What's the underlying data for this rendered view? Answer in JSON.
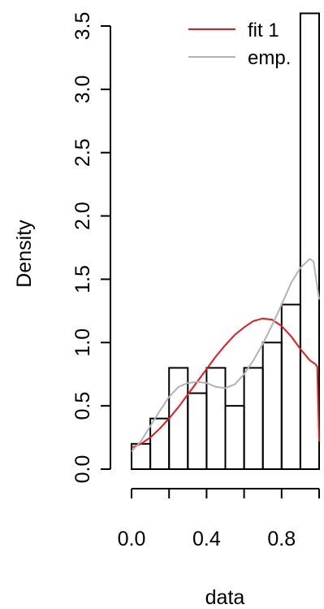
{
  "chart_data": {
    "type": "bar",
    "title": "",
    "xlabel": "data",
    "ylabel": "Density",
    "xlim": [
      0.0,
      1.0
    ],
    "ylim": [
      0.0,
      3.6
    ],
    "x_ticks": [
      "0.0",
      "0.4",
      "0.8"
    ],
    "x_tick_values": [
      0.0,
      0.2,
      0.4,
      0.6,
      0.8,
      1.0
    ],
    "x_tick_labeled": [
      0.0,
      0.4,
      0.8
    ],
    "y_ticks": [
      "0.0",
      "0.5",
      "1.0",
      "1.5",
      "2.0",
      "2.5",
      "3.0",
      "3.5"
    ],
    "y_tick_values": [
      0.0,
      0.5,
      1.0,
      1.5,
      2.0,
      2.5,
      3.0,
      3.5
    ],
    "histogram": {
      "bin_edges": [
        0.0,
        0.1,
        0.2,
        0.3,
        0.4,
        0.5,
        0.6,
        0.7,
        0.8,
        0.9,
        1.0
      ],
      "density": [
        0.2,
        0.4,
        0.8,
        0.6,
        0.8,
        0.5,
        0.8,
        1.0,
        1.3,
        3.6
      ]
    },
    "series": [
      {
        "name": "fit 1",
        "color": "#e31a1c",
        "x": [
          0.0,
          0.05,
          0.1,
          0.15,
          0.2,
          0.25,
          0.3,
          0.35,
          0.4,
          0.45,
          0.5,
          0.55,
          0.6,
          0.65,
          0.7,
          0.75,
          0.8,
          0.85,
          0.9,
          0.95,
          0.98,
          0.99,
          1.0
        ],
        "y": [
          0.17,
          0.2,
          0.25,
          0.32,
          0.4,
          0.49,
          0.59,
          0.69,
          0.79,
          0.89,
          0.98,
          1.06,
          1.12,
          1.17,
          1.19,
          1.18,
          1.13,
          1.05,
          0.95,
          0.86,
          0.83,
          0.81,
          0.22
        ]
      },
      {
        "name": "emp.",
        "color": "#b3b3b3",
        "x": [
          0.0,
          0.05,
          0.1,
          0.15,
          0.2,
          0.25,
          0.3,
          0.35,
          0.4,
          0.45,
          0.5,
          0.55,
          0.6,
          0.65,
          0.7,
          0.75,
          0.8,
          0.85,
          0.9,
          0.95,
          0.97,
          1.0
        ],
        "y": [
          0.14,
          0.22,
          0.34,
          0.46,
          0.57,
          0.65,
          0.68,
          0.69,
          0.68,
          0.65,
          0.64,
          0.67,
          0.75,
          0.86,
          0.99,
          1.14,
          1.3,
          1.47,
          1.59,
          1.66,
          1.64,
          1.34
        ]
      }
    ],
    "legend": {
      "position": "top-right",
      "entries": [
        "fit 1",
        "emp."
      ]
    }
  }
}
